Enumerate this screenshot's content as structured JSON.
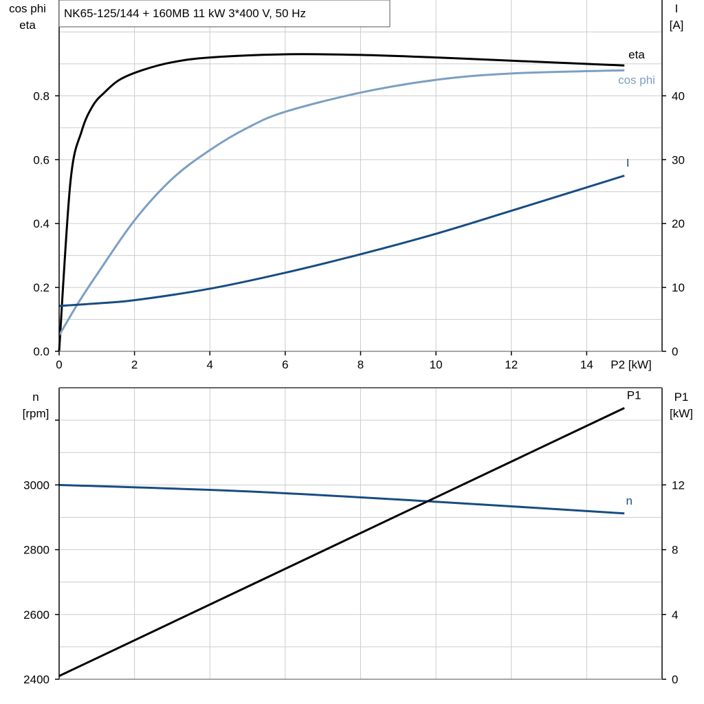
{
  "title": "NK65-125/144 + 160MB   11 kW   3*400 V, 50 Hz",
  "colors": {
    "eta": "#000000",
    "cos_phi": "#7b9fc2",
    "I": "#174c82",
    "n": "#174c82",
    "P1": "#000000",
    "grid": "#cccccc"
  },
  "chart_data": [
    {
      "type": "line",
      "xlabel": "P2 [kW]",
      "xlim": [
        0,
        16
      ],
      "x_ticks": [
        "0",
        "2",
        "4",
        "6",
        "8",
        "10",
        "12",
        "14"
      ],
      "ylabel_left": [
        "cos phi",
        "eta"
      ],
      "ylim_left": [
        0,
        1.1
      ],
      "y_ticks_left": [
        "0.0",
        "0.2",
        "0.4",
        "0.6",
        "0.8"
      ],
      "ylabel_right": [
        "I",
        "[A]"
      ],
      "ylim_right": [
        0,
        55
      ],
      "y_ticks_right": [
        "0",
        "10",
        "20",
        "30",
        "40"
      ],
      "grid": true,
      "series": [
        {
          "name": "eta",
          "axis": "left",
          "x": [
            0,
            0.3,
            0.6,
            0.9,
            1.2,
            1.6,
            2.2,
            3,
            4,
            6,
            8,
            10,
            12,
            15
          ],
          "y": [
            0,
            0.53,
            0.69,
            0.77,
            0.81,
            0.85,
            0.88,
            0.905,
            0.92,
            0.93,
            0.928,
            0.92,
            0.91,
            0.895
          ]
        },
        {
          "name": "cos phi",
          "axis": "left",
          "x": [
            0,
            0.5,
            1,
            2,
            3,
            4,
            5,
            6,
            8,
            10,
            12,
            15
          ],
          "y": [
            0.05,
            0.15,
            0.24,
            0.41,
            0.54,
            0.63,
            0.7,
            0.75,
            0.81,
            0.85,
            0.87,
            0.88
          ]
        },
        {
          "name": "I",
          "axis": "right",
          "x": [
            0,
            1,
            2,
            4,
            6,
            8,
            10,
            12,
            15
          ],
          "y": [
            7.1,
            7.5,
            8.0,
            9.8,
            12.3,
            15.2,
            18.4,
            22.0,
            27.5
          ]
        }
      ]
    },
    {
      "type": "line",
      "xlim": [
        0,
        16
      ],
      "ylabel_left": [
        "n",
        "[rpm]"
      ],
      "ylim_left": [
        2400,
        3300
      ],
      "y_ticks_left": [
        "2400",
        "2600",
        "2800",
        "3000"
      ],
      "ylabel_right": [
        "P1",
        "[kW]"
      ],
      "ylim_right": [
        0,
        18
      ],
      "y_ticks_right": [
        "0",
        "4",
        "8",
        "12"
      ],
      "grid": true,
      "series": [
        {
          "name": "n",
          "axis": "left",
          "x": [
            0,
            5,
            10,
            15
          ],
          "y": [
            3000,
            2980,
            2948,
            2912
          ]
        },
        {
          "name": "P1",
          "axis": "right",
          "x": [
            0,
            15
          ],
          "y": [
            0.2,
            16.75
          ]
        }
      ]
    }
  ]
}
